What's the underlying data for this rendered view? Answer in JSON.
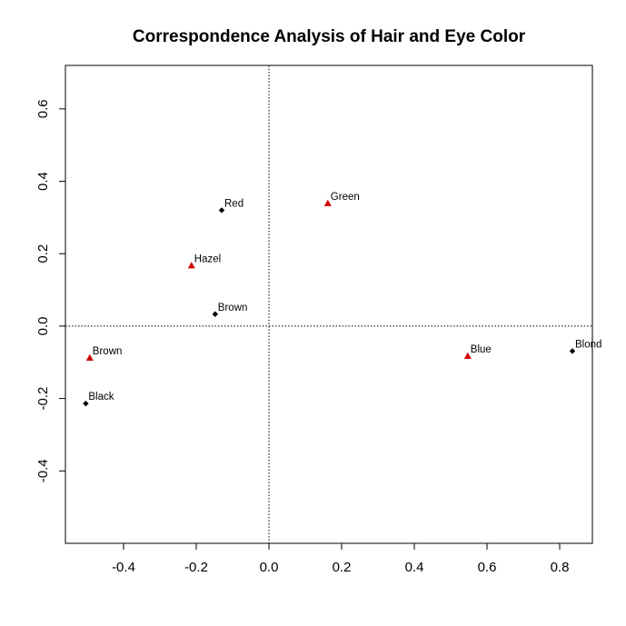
{
  "chart_data": {
    "type": "scatter",
    "title": "Correspondence Analysis of Hair and Eye Color",
    "xlabel": "",
    "ylabel": "",
    "xlim": [
      -0.56,
      0.89
    ],
    "ylim": [
      -0.6,
      0.72
    ],
    "x_ticks": [
      -0.4,
      -0.2,
      0.0,
      0.2,
      0.4,
      0.6,
      0.8
    ],
    "x_tick_labels": [
      "-0.4",
      "-0.2",
      "0.0",
      "0.2",
      "0.4",
      "0.6",
      "0.8"
    ],
    "y_ticks": [
      -0.4,
      -0.2,
      0.0,
      0.2,
      0.4,
      0.6
    ],
    "y_tick_labels": [
      "-0.4",
      "-0.2",
      "0.0",
      "0.2",
      "0.4",
      "0.6"
    ],
    "reference_lines": {
      "x": 0,
      "y": 0,
      "style": "dotted"
    },
    "grid": false,
    "series": [
      {
        "marker": "diamond",
        "color": "#000000",
        "points": [
          {
            "label": "Black",
            "x": -0.504,
            "y": -0.214
          },
          {
            "label": "Brown",
            "x": -0.148,
            "y": 0.033
          },
          {
            "label": "Red",
            "x": -0.13,
            "y": 0.32
          },
          {
            "label": "Blond",
            "x": 0.835,
            "y": -0.069
          }
        ]
      },
      {
        "marker": "triangle",
        "color": "#cc0000",
        "points": [
          {
            "label": "Brown",
            "x": -0.493,
            "y": -0.088
          },
          {
            "label": "Hazel",
            "x": -0.213,
            "y": 0.167
          },
          {
            "label": "Green",
            "x": 0.162,
            "y": 0.339
          },
          {
            "label": "Blue",
            "x": 0.547,
            "y": -0.083
          }
        ]
      }
    ]
  }
}
